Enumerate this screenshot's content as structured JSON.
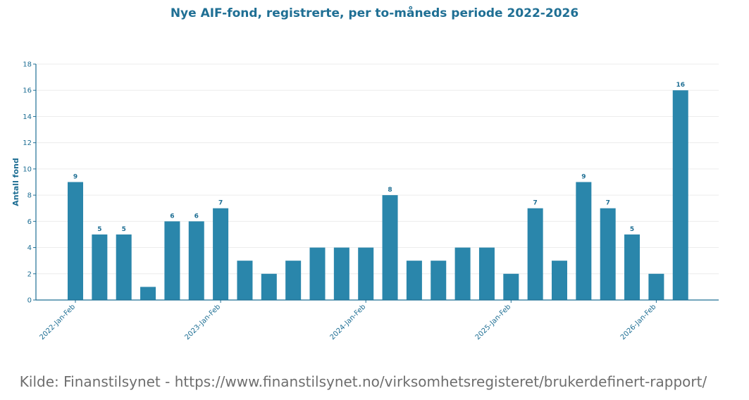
{
  "chart_data": {
    "type": "bar",
    "title": "Nye AIF-fond, registrerte, per to-måneds periode 2022-2026",
    "ylabel": "Antall fond",
    "xlabel": "",
    "ylim": [
      0,
      18
    ],
    "yticks": [
      "0",
      "2",
      "4",
      "6",
      "8",
      "10",
      "12",
      "14",
      "16",
      "18"
    ],
    "grid": "horizontal",
    "bar_color": "#2a86ab",
    "axis_color": "#1f6f94",
    "values": [
      9,
      5,
      5,
      1,
      6,
      6,
      7,
      3,
      2,
      3,
      4,
      4,
      4,
      8,
      3,
      3,
      4,
      4,
      2,
      7,
      3,
      9,
      7,
      5,
      2,
      16
    ],
    "data_labels": [
      "9",
      "5",
      "5",
      "",
      "6",
      "6",
      "7",
      "",
      "",
      "",
      "",
      "",
      "",
      "8",
      "",
      "",
      "",
      "",
      "",
      "7",
      "",
      "9",
      "7",
      "5",
      "",
      "16"
    ],
    "x_tick_labels": [
      "2022-Jan-Feb",
      "",
      "",
      "",
      "",
      "",
      "2023-Jan-Feb",
      "",
      "",
      "",
      "",
      "",
      "2024-Jan-Feb",
      "",
      "",
      "",
      "",
      "",
      "2025-Jan-Feb",
      "",
      "",
      "",
      "",
      "",
      "2026-Jan-Feb",
      ""
    ]
  },
  "source_note": "Kilde: Finanstilsynet - https://www.finanstilsynet.no/virksomhetsregisteret/brukerdefinert-rapport/"
}
